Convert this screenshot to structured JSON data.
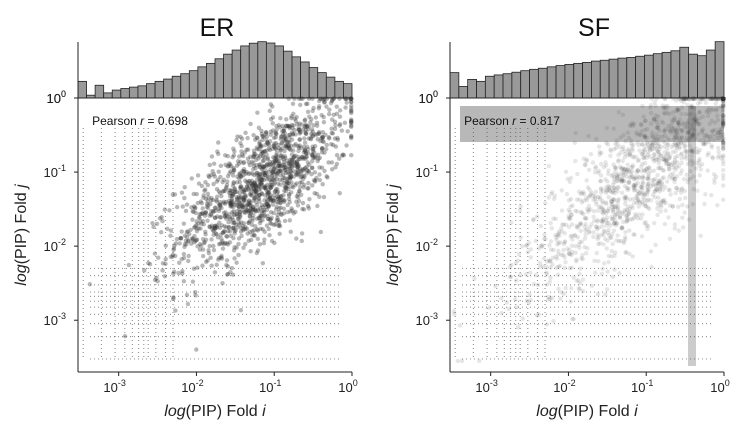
{
  "chart_data": [
    {
      "type": "scatter",
      "title": "ER",
      "xlabel": {
        "log_part": "log",
        "mid": "(PIP) Fold ",
        "var": "i"
      },
      "ylabel": {
        "log_part": "log",
        "mid": "(PIP) Fold ",
        "var": "j"
      },
      "x_scale": "log",
      "y_scale": "log",
      "xlim": [
        0.0003,
        1
      ],
      "ylim": [
        0.0002,
        1
      ],
      "x_ticks": [
        {
          "value": 0.001,
          "base": "10",
          "exp": "-3"
        },
        {
          "value": 0.01,
          "base": "10",
          "exp": "-2"
        },
        {
          "value": 0.1,
          "base": "10",
          "exp": "-1"
        },
        {
          "value": 1,
          "base": "10",
          "exp": "0"
        }
      ],
      "y_ticks": [
        {
          "value": 0.001,
          "base": "10",
          "exp": "-3"
        },
        {
          "value": 0.01,
          "base": "10",
          "exp": "-2"
        },
        {
          "value": 0.1,
          "base": "10",
          "exp": "-1"
        },
        {
          "value": 1,
          "base": "10",
          "exp": "0"
        }
      ],
      "annotation": {
        "prefix": "Pearson ",
        "var": "r",
        "suffix": " = 0.698"
      },
      "pearson_r": 0.698,
      "marginal_histogram": {
        "type": "bar",
        "y_tick": {
          "base": "10",
          "exp": "0"
        },
        "scale": "log",
        "values": [
          0.3,
          0.1,
          0.22,
          0.12,
          0.15,
          0.17,
          0.19,
          0.21,
          0.25,
          0.3,
          0.36,
          0.45,
          0.55,
          0.7,
          0.95,
          1.25,
          1.8,
          2.6,
          3.6,
          5.0,
          6.2,
          7.0,
          6.3,
          5.0,
          3.3,
          2.1,
          1.4,
          0.9,
          0.6,
          0.42,
          0.3,
          0.25
        ]
      },
      "point_color": "#333333"
    },
    {
      "type": "scatter",
      "title": "SF",
      "xlabel": {
        "log_part": "log",
        "mid": "(PIP) Fold ",
        "var": "i"
      },
      "ylabel": {
        "log_part": "log",
        "mid": "(PIP) Fold ",
        "var": "j"
      },
      "x_scale": "log",
      "y_scale": "log",
      "xlim": [
        0.0003,
        1
      ],
      "ylim": [
        0.0002,
        1
      ],
      "x_ticks": [
        {
          "value": 0.001,
          "base": "10",
          "exp": "-3"
        },
        {
          "value": 0.01,
          "base": "10",
          "exp": "-2"
        },
        {
          "value": 0.1,
          "base": "10",
          "exp": "-1"
        },
        {
          "value": 1,
          "base": "10",
          "exp": "0"
        }
      ],
      "y_ticks": [
        {
          "value": 0.001,
          "base": "10",
          "exp": "-3"
        },
        {
          "value": 0.01,
          "base": "10",
          "exp": "-2"
        },
        {
          "value": 0.1,
          "base": "10",
          "exp": "-1"
        },
        {
          "value": 1,
          "base": "10",
          "exp": "0"
        }
      ],
      "annotation": {
        "prefix": "Pearson ",
        "var": "r",
        "suffix": " = 0.817"
      },
      "pearson_r": 0.817,
      "marginal_histogram": {
        "type": "bar",
        "y_tick": {
          "base": "10",
          "exp": "0"
        },
        "scale": "log",
        "values": [
          0.6,
          0.2,
          0.35,
          0.3,
          0.45,
          0.5,
          0.55,
          0.62,
          0.7,
          0.78,
          0.85,
          0.95,
          1.05,
          1.15,
          1.25,
          1.35,
          1.5,
          1.6,
          1.75,
          1.9,
          2.0,
          2.2,
          2.4,
          2.7,
          3.0,
          3.4,
          4.5,
          2.6,
          2.3,
          3.6,
          7.0
        ]
      },
      "point_color": "#333333"
    }
  ]
}
